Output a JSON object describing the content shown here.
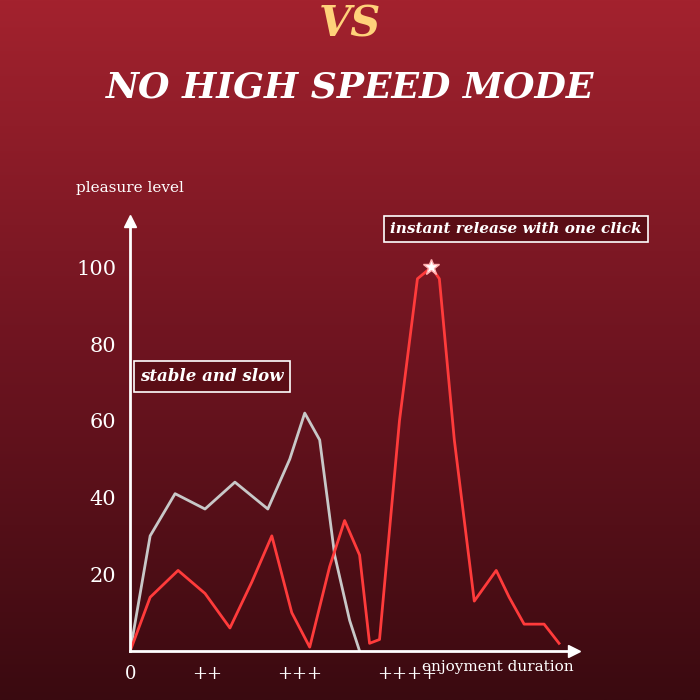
{
  "chart_data": {
    "type": "line",
    "subtitle": "VS",
    "title": "NO HIGH SPEED MODE",
    "y_label": "pleasure level",
    "x_label": "enjoyment duration",
    "annotations": [
      "stable and slow",
      "instant release with one click"
    ],
    "series": [
      {
        "color": "#c8c8c8",
        "x": [
          0,
          0.2,
          0.45,
          0.75,
          1.05,
          1.38,
          1.6,
          1.75,
          1.9,
          2.05,
          2.2,
          2.3
        ],
        "values": [
          0,
          30,
          41,
          37,
          44,
          37,
          50,
          62,
          55,
          25,
          8,
          0
        ]
      },
      {
        "color": "#ff3b3b",
        "x": [
          0,
          0.2,
          0.48,
          0.75,
          1.0,
          1.22,
          1.42,
          1.62,
          1.8,
          2.0,
          2.15,
          2.3,
          2.4,
          2.5,
          2.7,
          2.88,
          3.02,
          3.1,
          3.25,
          3.45,
          3.67,
          3.8,
          3.95,
          4.15,
          4.3
        ],
        "values": [
          0,
          14,
          21,
          15,
          6,
          18,
          30,
          10,
          1,
          22,
          34,
          25,
          2,
          3,
          60,
          97,
          100,
          97,
          55,
          13,
          21,
          14,
          7,
          7,
          2
        ]
      }
    ],
    "xlim": [
      0,
      4.45
    ],
    "ylim": [
      0,
      112
    ],
    "xticks": [
      0,
      {
        "value": 0.77,
        "label": "++"
      },
      {
        "value": 1.7,
        "label": "+++"
      },
      {
        "value": 2.78,
        "label": "++++"
      }
    ],
    "yticks": [
      20,
      40,
      60,
      80,
      100
    ],
    "grid": false
  }
}
